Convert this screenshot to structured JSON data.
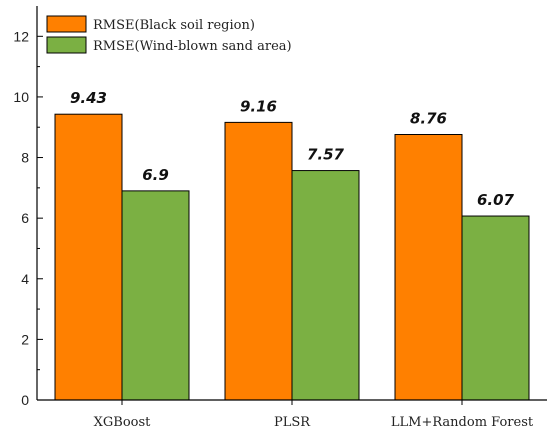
{
  "chart_data": {
    "type": "bar",
    "title": "",
    "xlabel": "",
    "ylabel": "",
    "categories": [
      "XGBoost",
      "PLSR",
      "LLM+Random Forest"
    ],
    "series": [
      {
        "name": "RMSE(Black soil region)",
        "values": [
          9.43,
          9.16,
          8.76
        ],
        "labels": [
          "9.43",
          "9.16",
          "8.76"
        ],
        "color": "#FF8000"
      },
      {
        "name": "RMSE(Wind-blown sand area)",
        "values": [
          6.9,
          7.57,
          6.07
        ],
        "labels": [
          "6.9",
          "7.57",
          "6.07"
        ],
        "color": "#7BB043"
      }
    ],
    "ylim": [
      0,
      13
    ],
    "yticks": [
      0,
      2,
      4,
      6,
      8,
      10,
      12
    ],
    "yticks_minor": [
      1,
      3,
      5,
      7,
      9,
      11
    ],
    "grid": false,
    "legend": "top-left",
    "bar_stroke": "#000000"
  }
}
